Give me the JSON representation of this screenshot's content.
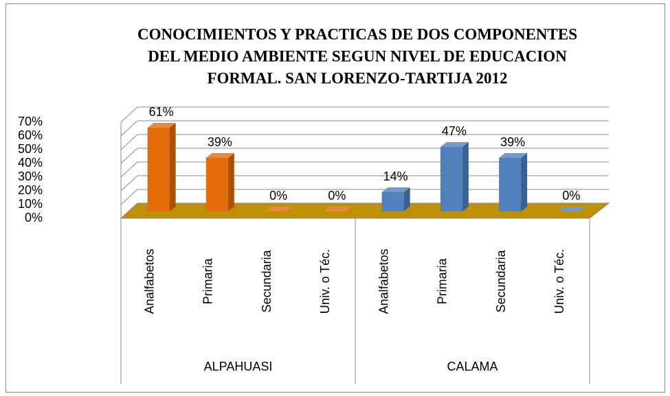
{
  "chart_data": {
    "type": "bar3d",
    "title": [
      "CONOCIMIENTOS Y PRACTICAS DE DOS COMPONENTES",
      "DEL MEDIO AMBIENTE SEGUN NIVEL DE EDUCACION",
      "FORMAL. SAN LORENZO-TARTIJA 2012"
    ],
    "groups": [
      {
        "name": "ALPAHUASI",
        "color": "#e46c0a",
        "categories": [
          "Analfabetos",
          "Primaria",
          "Secundaria",
          "Univ. o Téc."
        ],
        "values": [
          61,
          39,
          0,
          0
        ],
        "value_labels": [
          "61%",
          "39%",
          "0%",
          "0%"
        ]
      },
      {
        "name": "CALAMA",
        "color": "#4f81bd",
        "categories": [
          "Analfabetos",
          "Primaria",
          "Secundaria",
          "Univ. o Téc."
        ],
        "values": [
          14,
          47,
          39,
          0
        ],
        "value_labels": [
          "14%",
          "47%",
          "39%",
          "0%"
        ]
      }
    ],
    "ylim": [
      0,
      70
    ],
    "yticks": [
      {
        "value": 0,
        "label": "0%"
      },
      {
        "value": 10,
        "label": "10%"
      },
      {
        "value": 20,
        "label": "20%"
      },
      {
        "value": 30,
        "label": "30%"
      },
      {
        "value": 40,
        "label": "40%"
      },
      {
        "value": 50,
        "label": "50%"
      },
      {
        "value": 60,
        "label": "60%"
      },
      {
        "value": 70,
        "label": "70%"
      }
    ],
    "grid": true,
    "floor_color": "#bf9000"
  }
}
